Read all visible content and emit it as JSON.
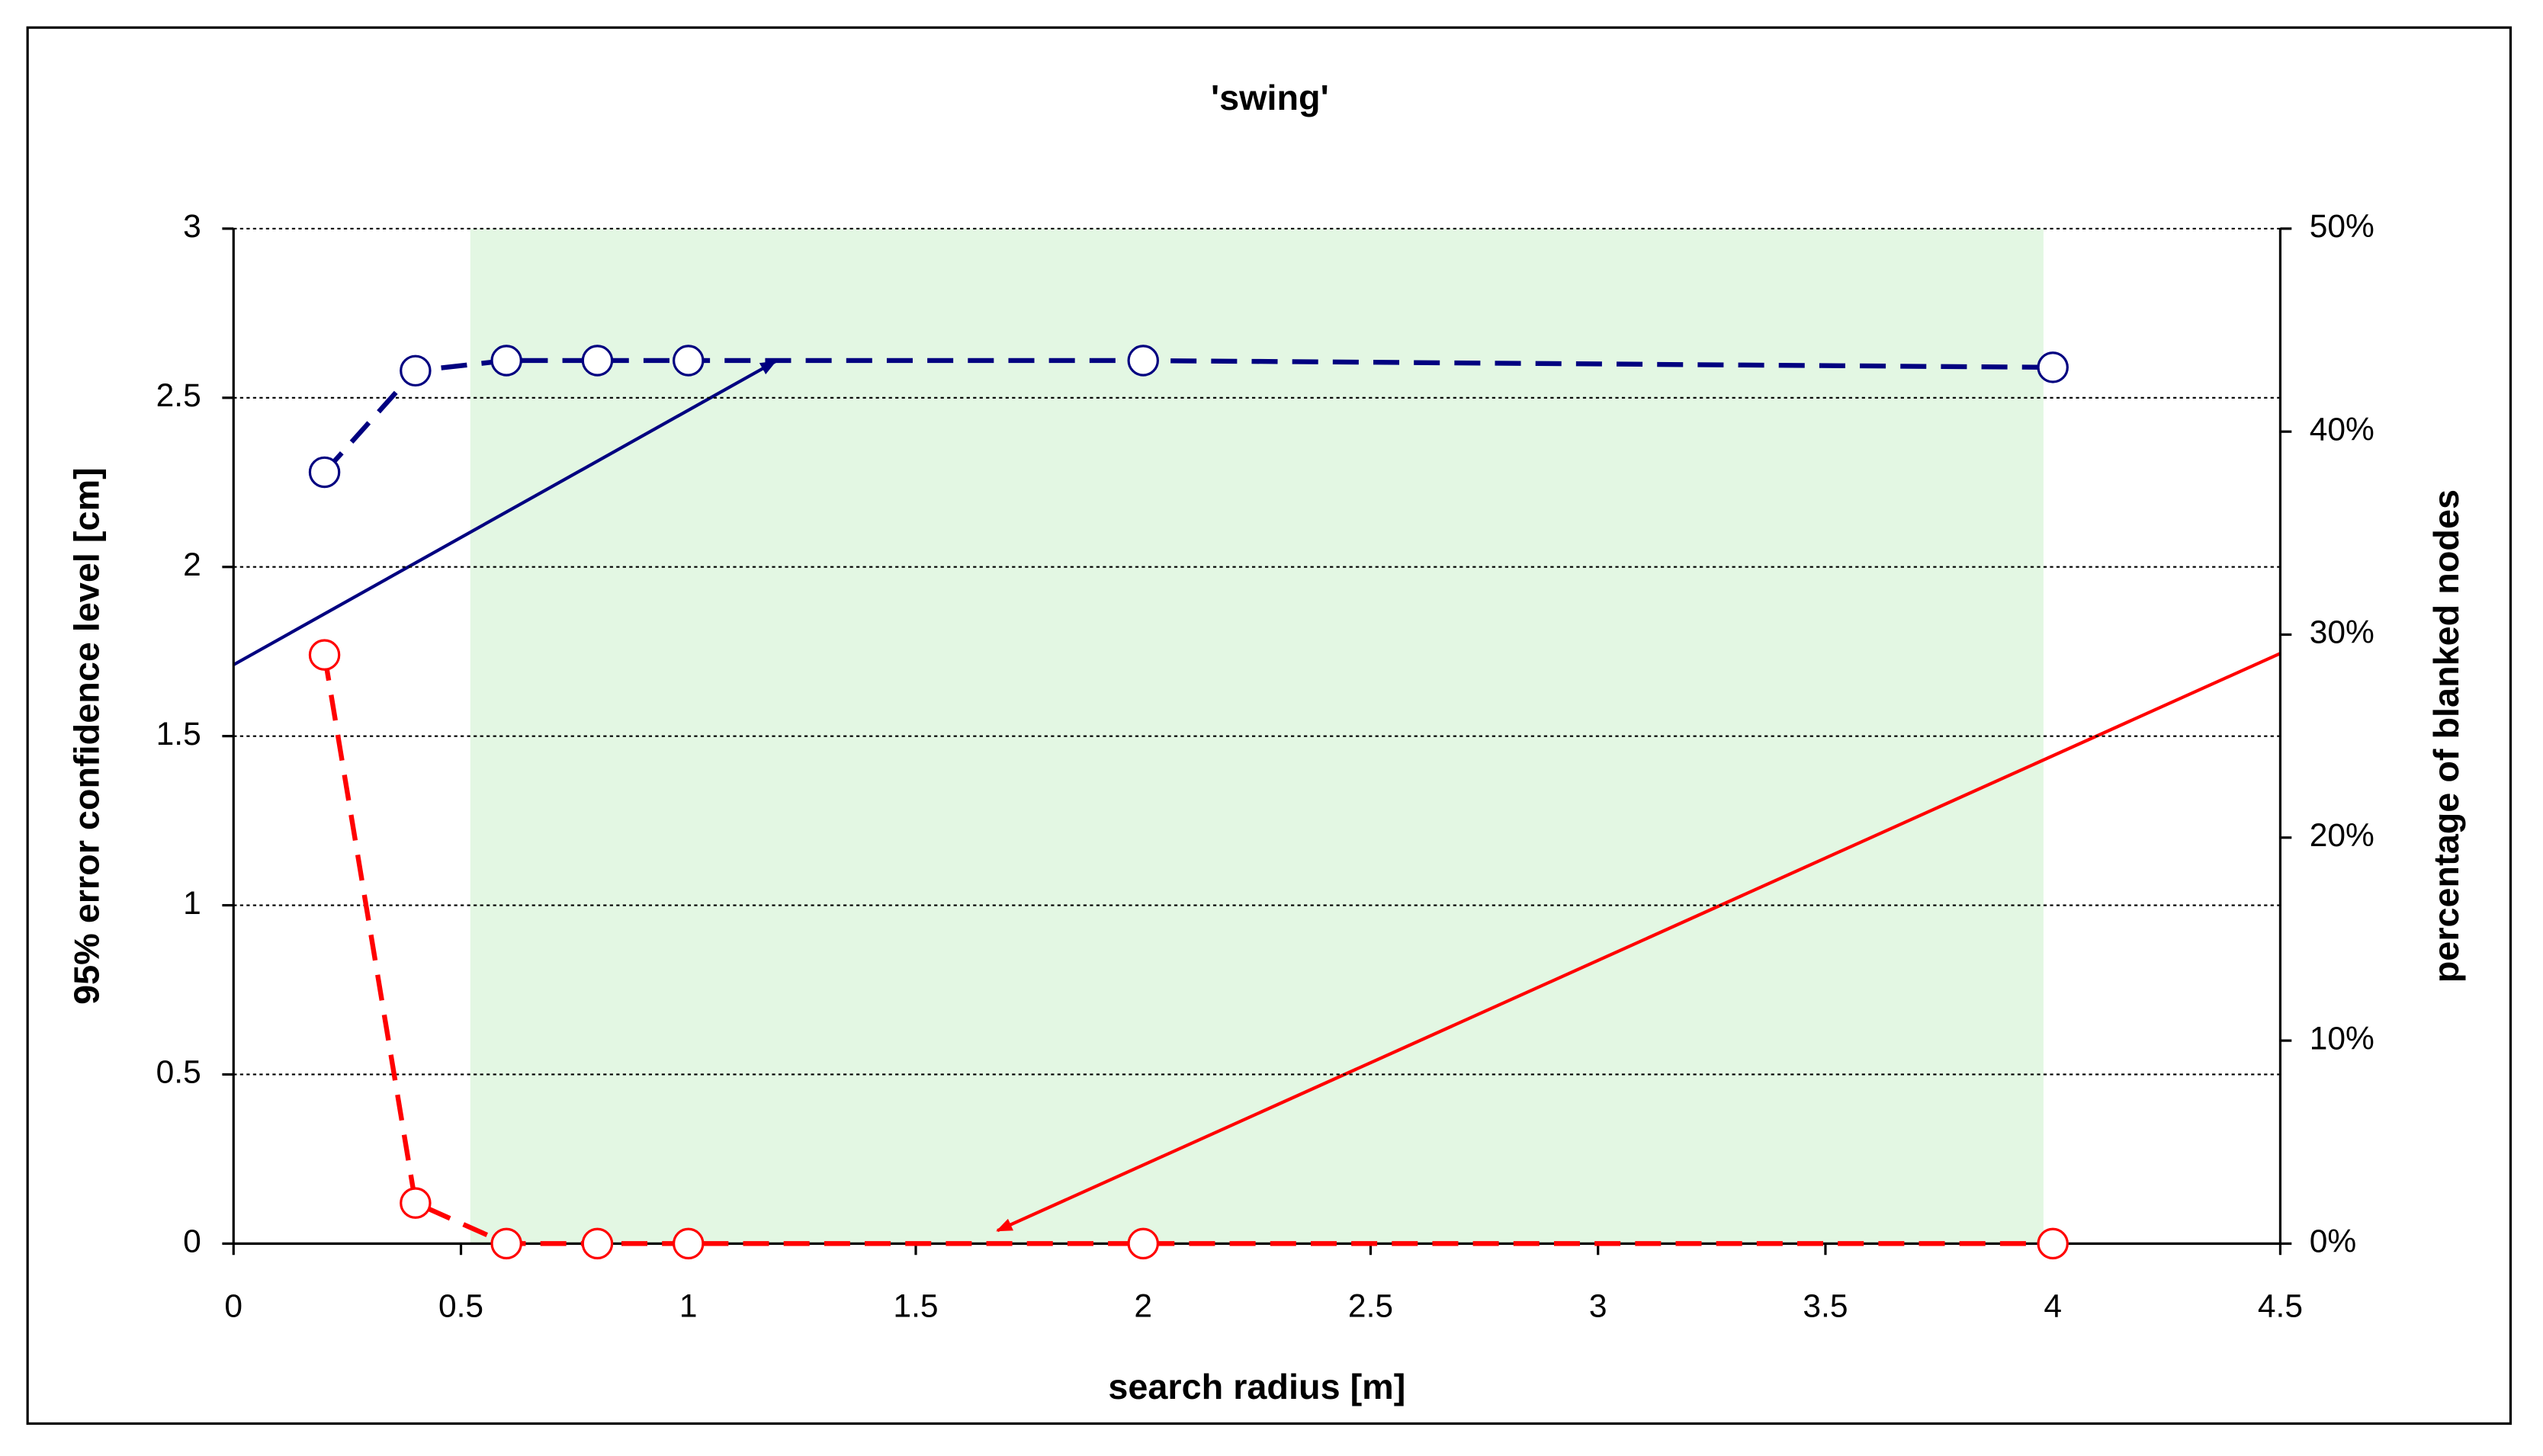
{
  "chart_data": {
    "type": "line",
    "title": "'swing'",
    "x_label": "search radius [m]",
    "y_label": "95% error confidence level [cm]",
    "y2_label": "percentage of blanked nodes",
    "x": [
      0.2,
      0.4,
      0.6,
      0.8,
      1,
      2,
      4
    ],
    "series": [
      {
        "name": "95% error confidence level",
        "color": "#000080",
        "values": [
          2.28,
          2.58,
          2.61,
          2.61,
          2.61,
          2.61,
          2.59
        ]
      },
      {
        "name": "percentage of blanked nodes",
        "color": "#ff0000",
        "axis": "y2",
        "values": [
          29,
          2,
          0,
          0,
          0,
          0,
          0
        ]
      }
    ],
    "xlim": [
      0,
      4.5
    ],
    "xticks": [
      0,
      0.5,
      1,
      1.5,
      2,
      2.5,
      3,
      3.5,
      4,
      4.5
    ],
    "ylim": [
      0,
      3
    ],
    "yticks": [
      0,
      0.5,
      1,
      1.5,
      2,
      2.5,
      3
    ],
    "y2lim": [
      0,
      50
    ],
    "y2ticks": [
      {
        "value": 0,
        "label": "0%"
      },
      {
        "value": 10,
        "label": "10%"
      },
      {
        "value": 20,
        "label": "20%"
      },
      {
        "value": 30,
        "label": "30%"
      },
      {
        "value": 40,
        "label": "40%"
      },
      {
        "value": 50,
        "label": "50%"
      }
    ],
    "grid": true
  }
}
